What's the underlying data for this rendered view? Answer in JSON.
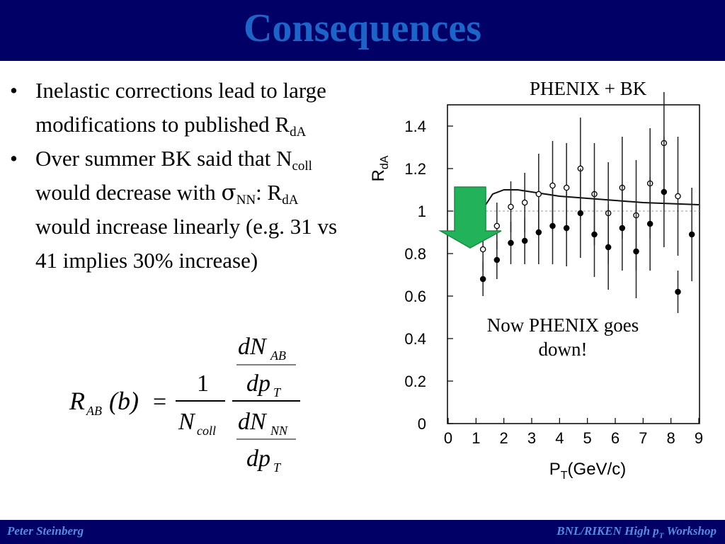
{
  "slide": {
    "title": "Consequences",
    "bullets": [
      {
        "pre": "Inelastic corrections lead to large modifications to published R",
        "sub": "dA"
      },
      {
        "p1": "Over summer BK said that N",
        "sub1": "coll",
        "p2": " would decrease with ",
        "sigma": "σ",
        "sub2": "NN",
        "p3": ": R",
        "sub3": "dA",
        "p4": " would increase linearly (e.g. 31 vs 41 implies 30% increase)"
      }
    ],
    "plot_label": "PHENIX + BK",
    "annotation": "Now PHENIX goes down!",
    "footer_left": "Peter Steinberg",
    "footer_right_pre": "BNL/RIKEN High p",
    "footer_right_sub": "T",
    "footer_right_post": " Workshop"
  },
  "formula": {
    "lhs_R": "R",
    "lhs_sub": "AB",
    "lhs_arg": "(b)",
    "eq": "=",
    "num1": "1",
    "den1": "N",
    "den1_sub": "coll",
    "num2_top": "dN",
    "num2_top_sub": "AB",
    "num2_bot": "dp",
    "num2_bot_sub": "T",
    "den2_top": "dN",
    "den2_top_sub": "NN",
    "den2_bot": "dp",
    "den2_bot_sub": "T"
  },
  "chart_data": {
    "type": "scatter",
    "xlabel": "P",
    "xlabel_sub": "T",
    "xlabel_unit": "(GeV/c)",
    "ylabel": "R",
    "ylabel_sub": "dA",
    "xlim": [
      0,
      9
    ],
    "ylim": [
      0,
      1.5
    ],
    "xticks": [
      "0",
      "1",
      "2",
      "3",
      "4",
      "5",
      "6",
      "7",
      "8",
      "9"
    ],
    "yticks": [
      "0",
      "0.2",
      "0.4",
      "0.6",
      "0.8",
      "1",
      "1.2",
      "1.4"
    ],
    "reference_line": 1.0,
    "series": [
      {
        "marker": "open",
        "x": [
          1.25,
          1.75,
          2.25,
          2.75,
          3.25,
          3.75,
          4.25,
          4.75,
          5.25,
          5.75,
          6.25,
          6.75,
          7.25,
          7.75,
          8.25
        ],
        "y": [
          0.82,
          0.93,
          1.02,
          1.04,
          1.08,
          1.12,
          1.11,
          1.2,
          1.08,
          0.99,
          1.11,
          0.98,
          1.13,
          1.32,
          1.07
        ],
        "err": [
          0.1,
          0.11,
          0.12,
          0.14,
          0.19,
          0.21,
          0.21,
          0.24,
          0.24,
          0.24,
          0.24,
          0.26,
          0.26,
          0.3,
          0.28
        ]
      },
      {
        "marker": "filled",
        "x": [
          1.25,
          1.75,
          2.25,
          2.75,
          3.25,
          3.75,
          4.25,
          4.75,
          5.25,
          5.75,
          6.25,
          6.75,
          7.25,
          7.75,
          8.25
        ],
        "y": [
          0.68,
          0.77,
          0.85,
          0.86,
          0.9,
          0.93,
          0.92,
          0.99,
          0.89,
          0.83,
          0.92,
          0.81,
          0.94,
          1.09,
          0.62
        ],
        "err": [
          0.08,
          0.09,
          0.1,
          0.11,
          0.15,
          0.18,
          0.18,
          0.21,
          0.2,
          0.2,
          0.2,
          0.22,
          0.22,
          0.26,
          0.1
        ],
        "extra_x": 8.75,
        "extra_y": 0.89,
        "extra_err": 0.22
      }
    ],
    "curve": {
      "x": [
        1.3,
        1.6,
        2.0,
        2.5,
        3.0,
        4.0,
        5.0,
        6.0,
        7.0,
        8.0,
        9.0
      ],
      "y": [
        1.02,
        1.08,
        1.1,
        1.1,
        1.09,
        1.07,
        1.06,
        1.05,
        1.04,
        1.035,
        1.03
      ]
    },
    "arrow_color": "#22b35a"
  }
}
